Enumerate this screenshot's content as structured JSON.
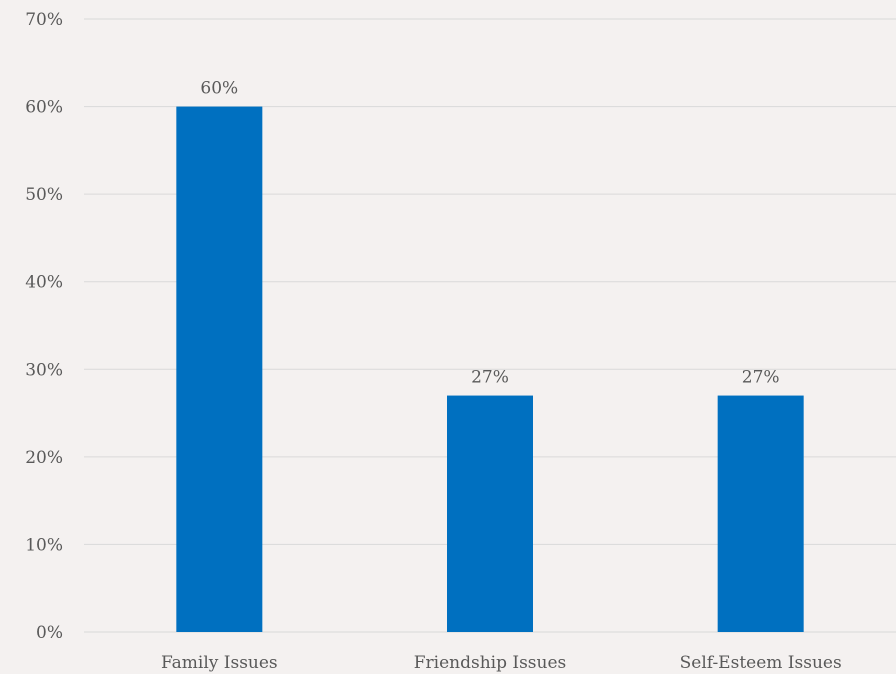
{
  "chart_data": {
    "type": "bar",
    "title": "",
    "xlabel": "",
    "ylabel": "",
    "categories": [
      "Family Issues",
      "Friendship Issues",
      "Self-Esteem Issues"
    ],
    "values": [
      60,
      27,
      27
    ],
    "data_labels": [
      "60%",
      "27%",
      "27%"
    ],
    "ylim": [
      0,
      70
    ],
    "yticks": [
      0,
      10,
      20,
      30,
      40,
      50,
      60,
      70
    ],
    "ytick_labels": [
      "0%",
      "10%",
      "20%",
      "30%",
      "40%",
      "50%",
      "60%",
      "70%"
    ],
    "grid": true,
    "legend": "none",
    "bar_color": "#0070c0",
    "background_color": "#f4f1f0",
    "grid_color": "#d9d9d9"
  }
}
